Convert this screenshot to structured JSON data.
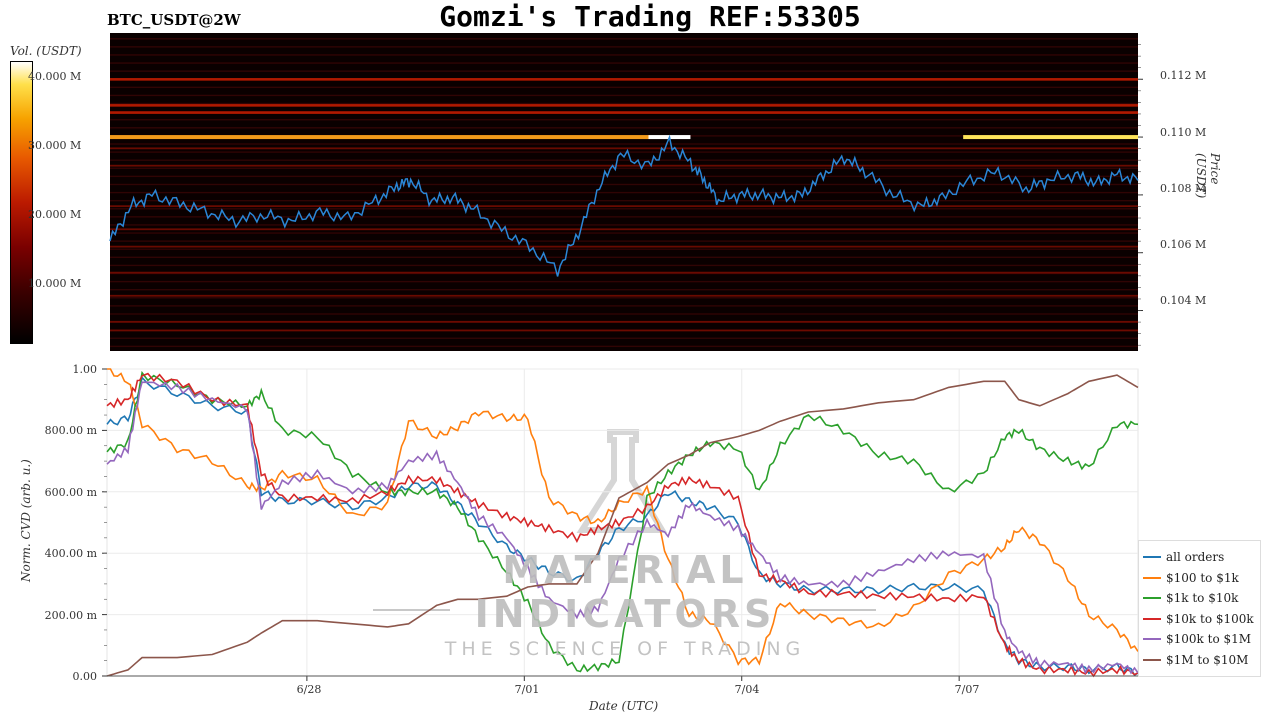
{
  "header": {
    "title": "Gomzi's Trading REF:53305",
    "pair": "BTC_USDT@2W"
  },
  "colorbar": {
    "title": "Vol. (USDT)",
    "ticks": [
      "40.000 M",
      "30.000 M",
      "20.000 M",
      "10.000 M"
    ],
    "tick_values": [
      40,
      30,
      20,
      10
    ],
    "range": [
      0,
      45
    ]
  },
  "watermark": {
    "main": "MATERIAL INDICATORS",
    "sub": "THE SCIENCE OF TRADING"
  },
  "colors": {
    "heatmap_bg": "#0a0000",
    "price_line": "#2a86d6",
    "bright_wall": "#f39a1a"
  },
  "chart_data": [
    {
      "type": "heatmap",
      "xlabel": "",
      "ylabel": "Price (USDT)",
      "yticks": [
        "0.112 M",
        "0.110 M",
        "0.108 M",
        "0.106 M",
        "0.104 M"
      ],
      "ytick_values": [
        112000,
        110000,
        108000,
        106000,
        104000
      ],
      "ylim": [
        102600,
        113600
      ],
      "xlim": [
        0,
        14.7
      ],
      "price_series": {
        "name": "",
        "x": [
          0,
          0.3,
          0.6,
          1.0,
          1.4,
          1.8,
          2.2,
          2.6,
          3.0,
          3.4,
          3.8,
          4.1,
          4.3,
          4.6,
          4.9,
          5.2,
          5.6,
          6.0,
          6.4,
          6.7,
          7.0,
          7.3,
          7.7,
          8.0,
          8.3,
          8.5,
          8.7,
          9.0,
          9.3,
          9.6,
          9.9,
          10.2,
          10.5,
          10.8,
          11.2,
          11.6,
          11.9,
          12.3,
          12.7,
          13.1,
          13.4,
          13.8,
          14.1,
          14.4,
          14.7
        ],
        "y": [
          106400,
          107600,
          108000,
          107700,
          107400,
          107100,
          107300,
          107100,
          107400,
          107200,
          107800,
          108300,
          108500,
          107800,
          107900,
          107500,
          106800,
          106200,
          105400,
          106700,
          108300,
          109400,
          109000,
          109800,
          109100,
          108500,
          107800,
          108000,
          108000,
          107900,
          108000,
          108700,
          109300,
          108800,
          108000,
          107600,
          107900,
          108500,
          108800,
          108200,
          108500,
          108700,
          108400,
          108700,
          108500
        ]
      },
      "bright_walls": [
        {
          "price": 110000,
          "x_start": 0,
          "x_end": 7.7,
          "volume_millions": 34
        },
        {
          "price": 110000,
          "x_start": 7.7,
          "x_end": 8.3,
          "volume_millions": 45
        },
        {
          "price": 110000,
          "x_start": 12.2,
          "x_end": 14.7,
          "volume_millions": 40
        }
      ],
      "level_bands": [
        112000,
        111100,
        110850,
        109600,
        109000,
        107600,
        106800,
        106200,
        105300,
        104500,
        103600,
        103300
      ]
    },
    {
      "type": "line",
      "xlabel": "Date (UTC)",
      "ylabel": "Norm. CVD (arb. u.)",
      "xticks": [
        "6/28",
        "7/01",
        "7/04",
        "7/07"
      ],
      "xtick_values": [
        2.85,
        5.95,
        9.05,
        12.15
      ],
      "yticks": [
        "0.00",
        "200.00 m",
        "400.00 m",
        "600.00 m",
        "800.00 m",
        "1.00"
      ],
      "ytick_values": [
        0,
        0.2,
        0.4,
        0.6,
        0.8,
        1.0
      ],
      "ylim": [
        0,
        1.0
      ],
      "xlim": [
        0,
        14.7
      ],
      "grid": true,
      "legend_position": "right",
      "x": [
        0,
        0.3,
        0.5,
        1.0,
        1.5,
        2.0,
        2.2,
        2.5,
        3.0,
        3.5,
        4.0,
        4.3,
        4.7,
        5.0,
        5.3,
        5.7,
        6.0,
        6.3,
        6.7,
        7.0,
        7.3,
        7.7,
        8.0,
        8.3,
        8.6,
        9.0,
        9.3,
        9.6,
        10.0,
        10.5,
        11.0,
        11.5,
        12.0,
        12.5,
        12.8,
        13.0,
        13.3,
        13.7,
        14.0,
        14.4,
        14.7
      ],
      "series": [
        {
          "name": "all orders",
          "color": "#1f77b4",
          "values": [
            0.82,
            0.84,
            0.96,
            0.92,
            0.88,
            0.86,
            0.6,
            0.57,
            0.57,
            0.55,
            0.58,
            0.62,
            0.62,
            0.56,
            0.5,
            0.42,
            0.38,
            0.34,
            0.31,
            0.4,
            0.48,
            0.52,
            0.6,
            0.57,
            0.55,
            0.5,
            0.33,
            0.3,
            0.28,
            0.28,
            0.28,
            0.29,
            0.29,
            0.28,
            0.1,
            0.05,
            0.03,
            0.03,
            0.02,
            0.03,
            0.01
          ]
        },
        {
          "name": "$100 to $1k",
          "color": "#ff7f0e",
          "values": [
            1.0,
            0.96,
            0.82,
            0.74,
            0.7,
            0.62,
            0.61,
            0.66,
            0.64,
            0.52,
            0.56,
            0.83,
            0.78,
            0.81,
            0.86,
            0.84,
            0.84,
            0.58,
            0.52,
            0.5,
            0.56,
            0.61,
            0.38,
            0.2,
            0.18,
            0.05,
            0.05,
            0.24,
            0.2,
            0.18,
            0.16,
            0.22,
            0.33,
            0.38,
            0.42,
            0.48,
            0.44,
            0.32,
            0.2,
            0.15,
            0.08
          ]
        },
        {
          "name": "$1k to $10k",
          "color": "#2ca02c",
          "values": [
            0.73,
            0.76,
            0.98,
            0.95,
            0.9,
            0.88,
            0.92,
            0.8,
            0.78,
            0.66,
            0.6,
            0.6,
            0.6,
            0.55,
            0.45,
            0.34,
            0.24,
            0.1,
            0.02,
            0.03,
            0.05,
            0.58,
            0.66,
            0.72,
            0.76,
            0.74,
            0.6,
            0.75,
            0.85,
            0.8,
            0.72,
            0.7,
            0.6,
            0.66,
            0.78,
            0.8,
            0.74,
            0.7,
            0.68,
            0.82,
            0.82
          ]
        },
        {
          "name": "$10k to $100k",
          "color": "#d62728",
          "values": [
            0.88,
            0.9,
            0.98,
            0.96,
            0.9,
            0.88,
            0.66,
            0.58,
            0.58,
            0.57,
            0.6,
            0.64,
            0.64,
            0.6,
            0.56,
            0.52,
            0.5,
            0.48,
            0.45,
            0.48,
            0.5,
            0.55,
            0.62,
            0.64,
            0.62,
            0.58,
            0.33,
            0.31,
            0.27,
            0.27,
            0.26,
            0.26,
            0.25,
            0.26,
            0.1,
            0.05,
            0.02,
            0.02,
            0.01,
            0.02,
            0.01
          ]
        },
        {
          "name": "$100k to $1M",
          "color": "#9467bd",
          "values": [
            0.69,
            0.74,
            0.96,
            0.94,
            0.9,
            0.87,
            0.55,
            0.63,
            0.66,
            0.6,
            0.62,
            0.7,
            0.72,
            0.63,
            0.52,
            0.45,
            0.35,
            0.25,
            0.2,
            0.22,
            0.38,
            0.5,
            0.46,
            0.56,
            0.52,
            0.48,
            0.4,
            0.32,
            0.3,
            0.3,
            0.34,
            0.38,
            0.4,
            0.39,
            0.14,
            0.08,
            0.04,
            0.04,
            0.02,
            0.04,
            0.01
          ]
        },
        {
          "name": "$1M to $10M",
          "color": "#8c564b",
          "values": [
            0.0,
            0.02,
            0.06,
            0.06,
            0.07,
            0.11,
            0.14,
            0.18,
            0.18,
            0.17,
            0.16,
            0.17,
            0.23,
            0.25,
            0.25,
            0.26,
            0.29,
            0.3,
            0.3,
            0.4,
            0.58,
            0.63,
            0.69,
            0.72,
            0.76,
            0.78,
            0.8,
            0.83,
            0.86,
            0.87,
            0.89,
            0.9,
            0.94,
            0.96,
            0.96,
            0.9,
            0.88,
            0.92,
            0.96,
            0.98,
            0.94
          ]
        }
      ]
    }
  ]
}
